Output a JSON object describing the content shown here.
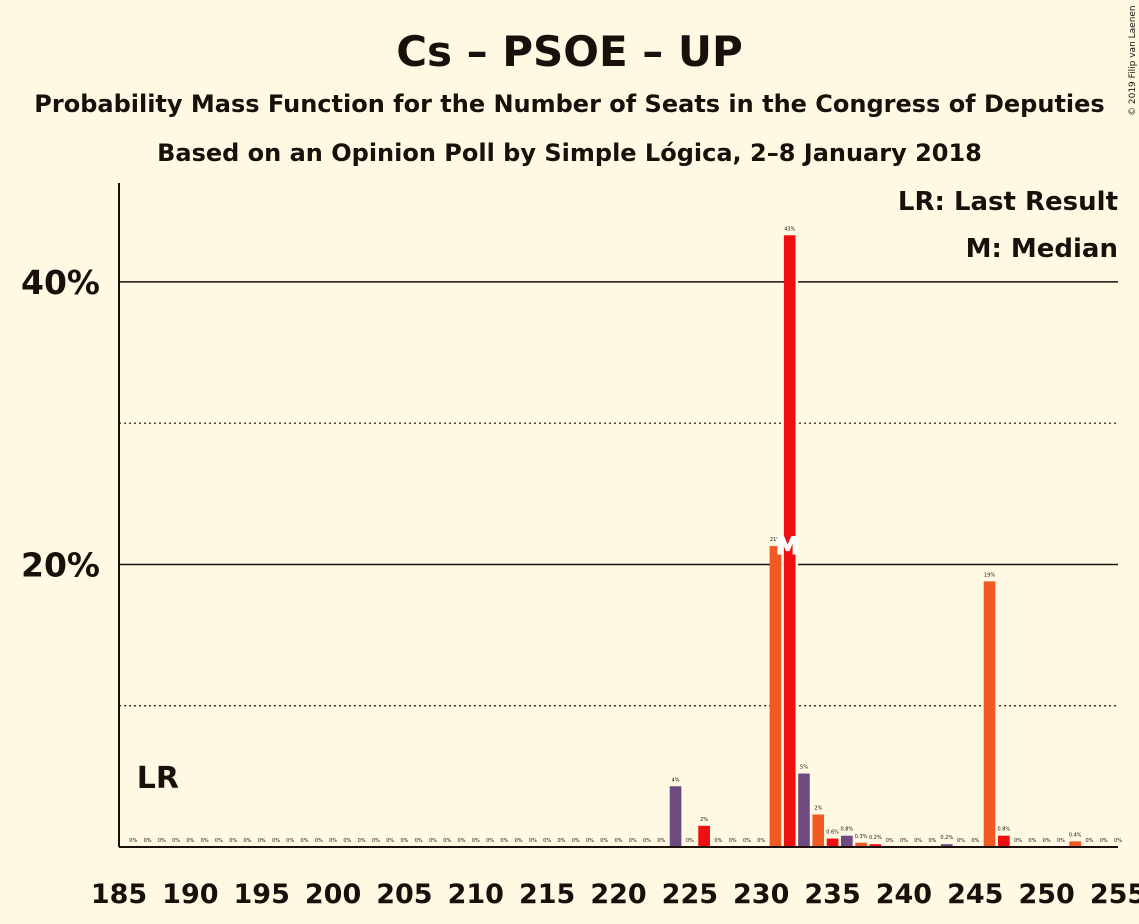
{
  "chart_data": {
    "type": "bar",
    "title": "Cs – PSOE – UP",
    "subtitle": "Probability Mass Function for the Number of Seats in the Congress of Deputies",
    "subtitle2": "Based on an Opinion Poll by Simple Lógica, 2–8 January 2018",
    "copyright": "© 2019 Filip van Laenen",
    "legend": {
      "last_result": "LR: Last Result",
      "median": "M: Median",
      "placement": "top-right"
    },
    "last_result_label": "LR",
    "last_result_seat": 188,
    "median_label": "M",
    "median_seat": 232,
    "xlim": [
      185,
      255
    ],
    "ylim": [
      0,
      47
    ],
    "x_ticks": [
      "185",
      "190",
      "195",
      "200",
      "205",
      "210",
      "215",
      "220",
      "225",
      "230",
      "235",
      "240",
      "245",
      "250",
      "255"
    ],
    "y_ticks": [
      {
        "value": 20,
        "label": "20%"
      },
      {
        "value": 40,
        "label": "40%"
      }
    ],
    "minor_gridlines": [
      10,
      30
    ],
    "colors": {
      "purple": "#6e4a7e",
      "orange": "#f15a22",
      "red": "#ee1010",
      "gridline": "#1a0f0a",
      "background": "#fff8e2"
    },
    "bars": [
      {
        "x": 186,
        "value": 0,
        "label": "0%",
        "color": "purple"
      },
      {
        "x": 187,
        "value": 0,
        "label": "0%",
        "color": "purple"
      },
      {
        "x": 188,
        "value": 0,
        "label": "0%",
        "color": "purple"
      },
      {
        "x": 189,
        "value": 0,
        "label": "0%",
        "color": "purple"
      },
      {
        "x": 190,
        "value": 0,
        "label": "0%",
        "color": "purple"
      },
      {
        "x": 191,
        "value": 0,
        "label": "0%",
        "color": "purple"
      },
      {
        "x": 192,
        "value": 0,
        "label": "0%",
        "color": "purple"
      },
      {
        "x": 193,
        "value": 0,
        "label": "0%",
        "color": "purple"
      },
      {
        "x": 194,
        "value": 0,
        "label": "0%",
        "color": "purple"
      },
      {
        "x": 195,
        "value": 0,
        "label": "0%",
        "color": "purple"
      },
      {
        "x": 196,
        "value": 0,
        "label": "0%",
        "color": "purple"
      },
      {
        "x": 197,
        "value": 0,
        "label": "0%",
        "color": "purple"
      },
      {
        "x": 198,
        "value": 0,
        "label": "0%",
        "color": "purple"
      },
      {
        "x": 199,
        "value": 0,
        "label": "0%",
        "color": "purple"
      },
      {
        "x": 200,
        "value": 0,
        "label": "0%",
        "color": "purple"
      },
      {
        "x": 201,
        "value": 0,
        "label": "0%",
        "color": "purple"
      },
      {
        "x": 202,
        "value": 0,
        "label": "0%",
        "color": "purple"
      },
      {
        "x": 203,
        "value": 0,
        "label": "0%",
        "color": "purple"
      },
      {
        "x": 204,
        "value": 0,
        "label": "0%",
        "color": "purple"
      },
      {
        "x": 205,
        "value": 0,
        "label": "0%",
        "color": "purple"
      },
      {
        "x": 206,
        "value": 0,
        "label": "0%",
        "color": "purple"
      },
      {
        "x": 207,
        "value": 0,
        "label": "0%",
        "color": "purple"
      },
      {
        "x": 208,
        "value": 0,
        "label": "0%",
        "color": "purple"
      },
      {
        "x": 209,
        "value": 0,
        "label": "0%",
        "color": "purple"
      },
      {
        "x": 210,
        "value": 0,
        "label": "0%",
        "color": "purple"
      },
      {
        "x": 211,
        "value": 0,
        "label": "0%",
        "color": "purple"
      },
      {
        "x": 212,
        "value": 0,
        "label": "0%",
        "color": "purple"
      },
      {
        "x": 213,
        "value": 0,
        "label": "0%",
        "color": "purple"
      },
      {
        "x": 214,
        "value": 0,
        "label": "0%",
        "color": "purple"
      },
      {
        "x": 215,
        "value": 0,
        "label": "0%",
        "color": "purple"
      },
      {
        "x": 216,
        "value": 0,
        "label": "0%",
        "color": "purple"
      },
      {
        "x": 217,
        "value": 0,
        "label": "0%",
        "color": "purple"
      },
      {
        "x": 218,
        "value": 0,
        "label": "0%",
        "color": "purple"
      },
      {
        "x": 219,
        "value": 0,
        "label": "0%",
        "color": "purple"
      },
      {
        "x": 220,
        "value": 0,
        "label": "0%",
        "color": "purple"
      },
      {
        "x": 221,
        "value": 0,
        "label": "0%",
        "color": "purple"
      },
      {
        "x": 222,
        "value": 0,
        "label": "0%",
        "color": "purple"
      },
      {
        "x": 223,
        "value": 0,
        "label": "0%",
        "color": "purple"
      },
      {
        "x": 224,
        "value": 4.3,
        "label": "4%",
        "color": "purple"
      },
      {
        "x": 225,
        "value": 0,
        "label": "0%",
        "color": "orange"
      },
      {
        "x": 226,
        "value": 1.5,
        "label": "2%",
        "color": "red"
      },
      {
        "x": 227,
        "value": 0,
        "label": "0%",
        "color": "purple"
      },
      {
        "x": 228,
        "value": 0,
        "label": "0%",
        "color": "purple"
      },
      {
        "x": 229,
        "value": 0,
        "label": "0%",
        "color": "purple"
      },
      {
        "x": 230,
        "value": 0,
        "label": "0%",
        "color": "purple"
      },
      {
        "x": 231,
        "value": 21.3,
        "label": "21%",
        "color": "orange"
      },
      {
        "x": 232,
        "value": 43.3,
        "label": "43%",
        "color": "red"
      },
      {
        "x": 233,
        "value": 5.2,
        "label": "5%",
        "color": "purple"
      },
      {
        "x": 234,
        "value": 2.3,
        "label": "2%",
        "color": "orange"
      },
      {
        "x": 235,
        "value": 0.6,
        "label": "0.6%",
        "color": "red"
      },
      {
        "x": 236,
        "value": 0.8,
        "label": "0.8%",
        "color": "purple"
      },
      {
        "x": 237,
        "value": 0.3,
        "label": "0.3%",
        "color": "orange"
      },
      {
        "x": 238,
        "value": 0.2,
        "label": "0.2%",
        "color": "red"
      },
      {
        "x": 239,
        "value": 0,
        "label": "0%",
        "color": "purple"
      },
      {
        "x": 240,
        "value": 0,
        "label": "0%",
        "color": "purple"
      },
      {
        "x": 241,
        "value": 0,
        "label": "0%",
        "color": "purple"
      },
      {
        "x": 242,
        "value": 0,
        "label": "0%",
        "color": "purple"
      },
      {
        "x": 243,
        "value": 0.2,
        "label": "0.2%",
        "color": "purple"
      },
      {
        "x": 244,
        "value": 0,
        "label": "0%",
        "color": "purple"
      },
      {
        "x": 245,
        "value": 0,
        "label": "0%",
        "color": "purple"
      },
      {
        "x": 246,
        "value": 18.8,
        "label": "19%",
        "color": "orange"
      },
      {
        "x": 247,
        "value": 0.8,
        "label": "0.8%",
        "color": "red"
      },
      {
        "x": 248,
        "value": 0,
        "label": "0%",
        "color": "purple"
      },
      {
        "x": 249,
        "value": 0,
        "label": "0%",
        "color": "purple"
      },
      {
        "x": 250,
        "value": 0,
        "label": "0%",
        "color": "purple"
      },
      {
        "x": 251,
        "value": 0,
        "label": "0%",
        "color": "purple"
      },
      {
        "x": 252,
        "value": 0.4,
        "label": "0.4%",
        "color": "orange"
      },
      {
        "x": 253,
        "value": 0,
        "label": "0%",
        "color": "purple"
      },
      {
        "x": 254,
        "value": 0,
        "label": "0%",
        "color": "purple"
      },
      {
        "x": 255,
        "value": 0,
        "label": "0%",
        "color": "purple"
      }
    ]
  }
}
